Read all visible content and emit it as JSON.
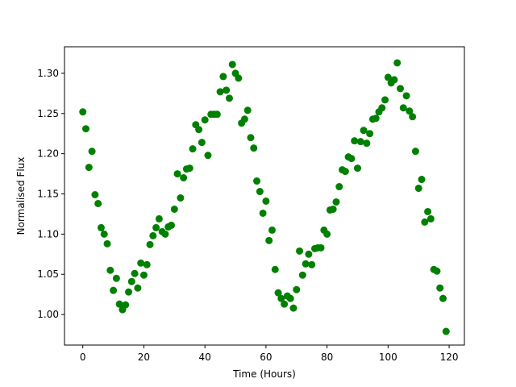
{
  "chart_data": {
    "type": "scatter",
    "title": "",
    "xlabel": "Time (Hours)",
    "ylabel": "Normalised Flux",
    "xlim": [
      -6.0,
      125.0
    ],
    "ylim": [
      0.962,
      1.333
    ],
    "xticks": [
      0,
      20,
      40,
      60,
      80,
      100,
      120
    ],
    "xtick_labels": [
      "0",
      "20",
      "40",
      "60",
      "80",
      "100",
      "120"
    ],
    "yticks": [
      1.0,
      1.05,
      1.1,
      1.15,
      1.2,
      1.25,
      1.3
    ],
    "ytick_labels": [
      "1.00",
      "1.05",
      "1.10",
      "1.15",
      "1.20",
      "1.25",
      "1.30"
    ],
    "grid": false,
    "legend": false,
    "marker_color": "#008000",
    "series": [
      {
        "x": [
          0,
          1,
          2,
          3,
          4,
          5,
          6,
          7,
          8,
          9,
          10,
          11,
          12,
          13,
          14,
          15,
          16,
          17,
          18,
          19,
          20,
          21,
          22,
          23,
          24,
          25,
          26,
          27,
          28,
          29,
          30,
          31,
          32,
          33,
          34,
          35,
          36,
          37,
          38,
          39,
          40,
          41,
          42,
          43,
          44,
          45,
          46,
          47,
          48,
          49,
          50,
          51,
          52,
          53,
          54,
          55,
          56,
          57,
          58,
          59,
          60,
          61,
          62,
          63,
          64,
          65,
          66,
          67,
          68,
          69,
          70,
          71,
          72,
          73,
          74,
          75,
          76,
          77,
          78,
          79,
          80,
          81,
          82,
          83,
          84,
          85,
          86,
          87,
          88,
          89,
          90,
          91,
          92,
          93,
          94,
          95,
          96,
          97,
          98,
          99,
          100,
          101,
          102,
          103,
          104,
          105,
          106,
          107,
          108,
          109,
          110,
          111,
          112,
          113,
          114,
          115,
          116,
          117,
          118,
          119
        ],
        "y": [
          1.252,
          1.231,
          1.183,
          1.203,
          1.149,
          1.138,
          1.108,
          1.1,
          1.088,
          1.055,
          1.03,
          1.045,
          1.013,
          1.006,
          1.012,
          1.028,
          1.041,
          1.051,
          1.033,
          1.064,
          1.049,
          1.062,
          1.087,
          1.098,
          1.108,
          1.119,
          1.103,
          1.1,
          1.109,
          1.111,
          1.131,
          1.175,
          1.145,
          1.17,
          1.181,
          1.182,
          1.206,
          1.236,
          1.23,
          1.214,
          1.242,
          1.198,
          1.249,
          1.249,
          1.249,
          1.277,
          1.296,
          1.279,
          1.269,
          1.311,
          1.3,
          1.294,
          1.238,
          1.243,
          1.254,
          1.22,
          1.207,
          1.166,
          1.153,
          1.126,
          1.141,
          1.092,
          1.105,
          1.056,
          1.027,
          1.02,
          1.013,
          1.023,
          1.02,
          1.008,
          1.031,
          1.079,
          1.049,
          1.063,
          1.075,
          1.062,
          1.082,
          1.083,
          1.083,
          1.105,
          1.1,
          1.13,
          1.131,
          1.14,
          1.159,
          1.18,
          1.178,
          1.196,
          1.194,
          1.216,
          1.182,
          1.215,
          1.229,
          1.213,
          1.225,
          1.243,
          1.244,
          1.252,
          1.257,
          1.267,
          1.295,
          1.288,
          1.292,
          1.313,
          1.281,
          1.257,
          1.272,
          1.253,
          1.246,
          1.203,
          1.157,
          1.168,
          1.115,
          1.128,
          1.119,
          1.056,
          1.054,
          1.033,
          1.02,
          0.979
        ]
      }
    ]
  }
}
